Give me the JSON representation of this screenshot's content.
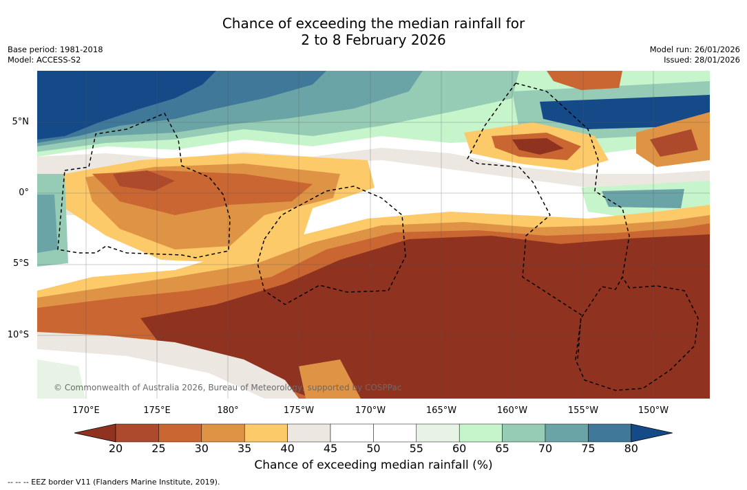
{
  "title": {
    "line1": "Chance of exceeding the median rainfall for",
    "line2": "2 to 8 February 2026"
  },
  "meta": {
    "base_period": "Base period: 1981-2018",
    "model": "Model: ACCESS-S2",
    "model_run": "Model run: 26/01/2026",
    "issued": "Issued: 28/01/2026"
  },
  "map": {
    "lat_labels": [
      "5°N",
      "0°",
      "5°S",
      "10°S"
    ],
    "lon_labels": [
      "170°E",
      "175°E",
      "180°",
      "175°W",
      "170°W",
      "165°W",
      "160°W",
      "155°W",
      "150°W"
    ],
    "copyright": "© Commonwealth of Australia 2026, Bureau of Meteorology, supported by COSPPac",
    "border_color": "#000000"
  },
  "colorbar": {
    "ticks": [
      "20",
      "25",
      "30",
      "35",
      "40",
      "45",
      "50",
      "55",
      "60",
      "65",
      "70",
      "75",
      "80"
    ],
    "colors": [
      "#8f3220",
      "#ad4a2b",
      "#c96632",
      "#df9345",
      "#fdca6a",
      "#ede7e2",
      "#ffffff",
      "#ffffff",
      "#e6f3e5",
      "#c6f5cc",
      "#96ccb6",
      "#6ba4a7",
      "#3f7899",
      "#144a88"
    ],
    "label": "Chance of exceeding median rainfall (%)"
  },
  "footnote": "--  --  -- EEZ border V11 (Flanders Marine Institute, 2019)."
}
